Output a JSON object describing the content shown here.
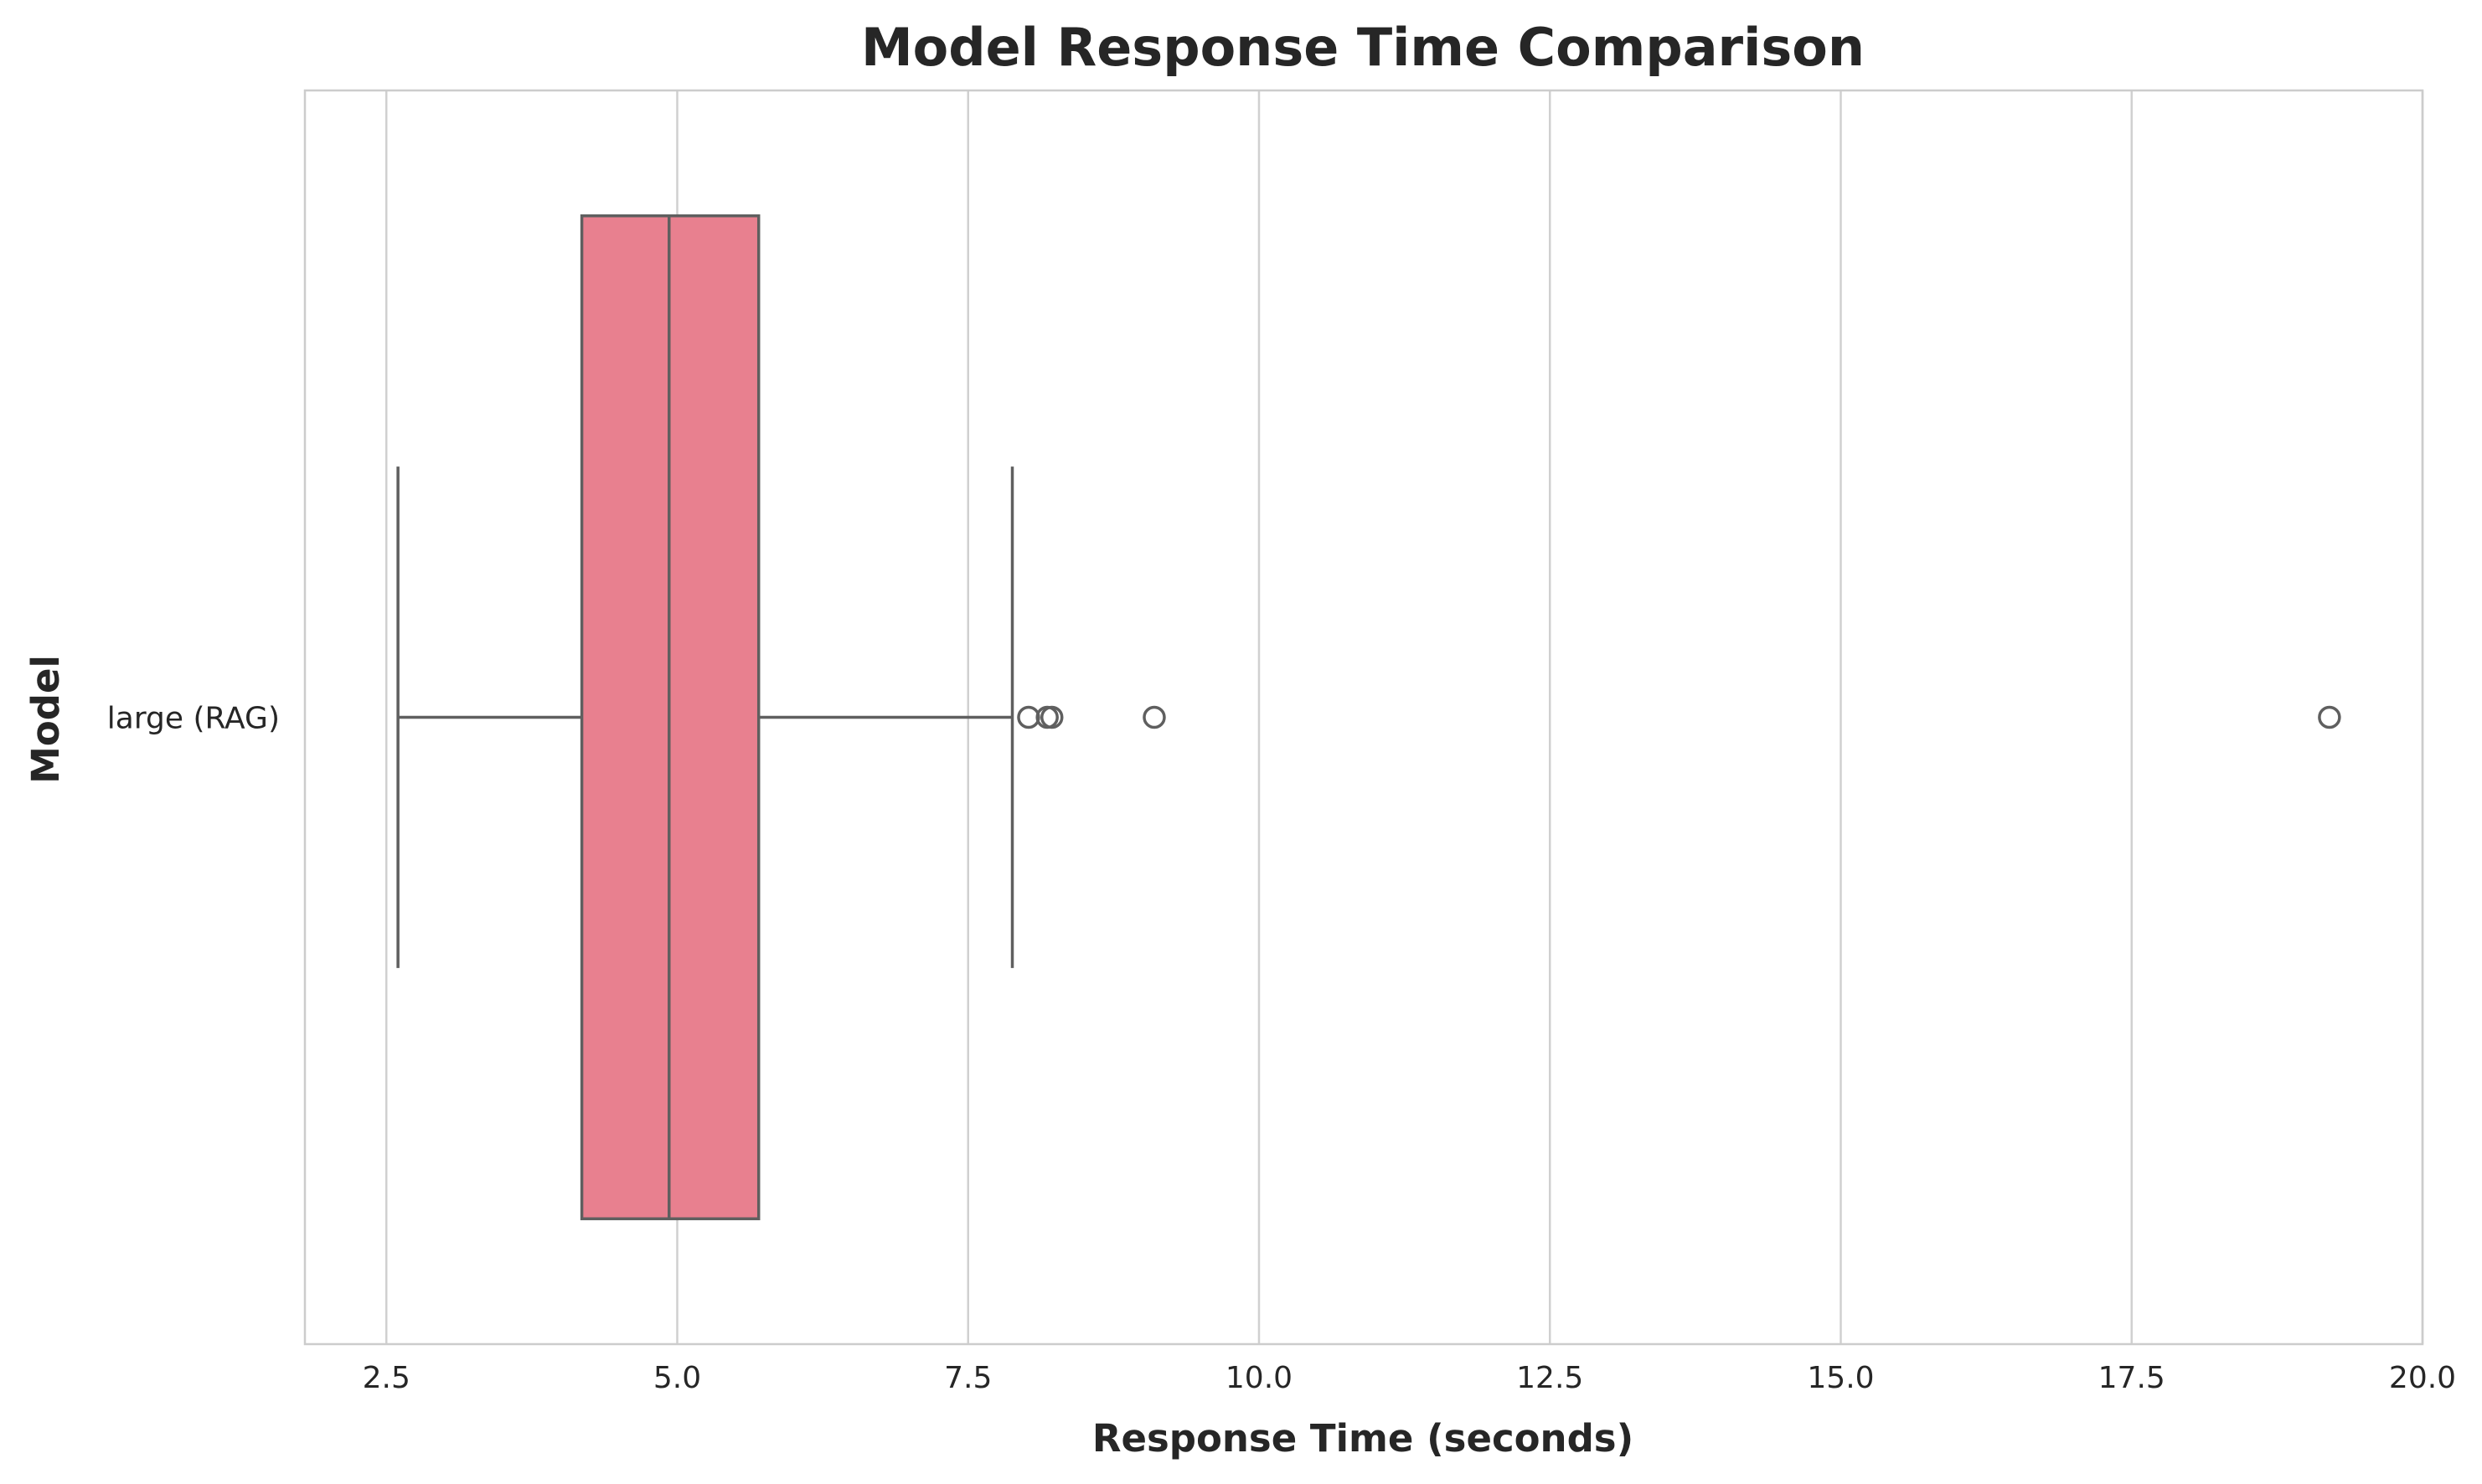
{
  "chart_data": {
    "type": "boxplot",
    "orientation": "horizontal",
    "title": "Model Response Time Comparison",
    "xlabel": "Response Time (seconds)",
    "ylabel": "Model",
    "xlim": [
      1.8,
      20.0
    ],
    "xticks": [
      2.5,
      5.0,
      7.5,
      10.0,
      12.5,
      15.0,
      17.5,
      20.0
    ],
    "xtick_labels": [
      "2.5",
      "5.0",
      "7.5",
      "10.0",
      "12.5",
      "15.0",
      "17.5",
      "20.0"
    ],
    "grid": "vertical",
    "legend": "none",
    "categories": [
      "large (RAG)"
    ],
    "boxes": [
      {
        "category": "large (RAG)",
        "whisker_low": 2.6,
        "q1": 4.18,
        "median": 4.93,
        "q3": 5.7,
        "whisker_high": 7.88,
        "outliers": [
          8.02,
          8.18,
          8.22,
          9.1,
          19.2
        ],
        "color": "#e8808f"
      }
    ]
  },
  "colors": {
    "box_fill": "#e8808f",
    "line": "#5f5f5f",
    "grid": "#d0d0d0",
    "spine": "#cccccc"
  }
}
